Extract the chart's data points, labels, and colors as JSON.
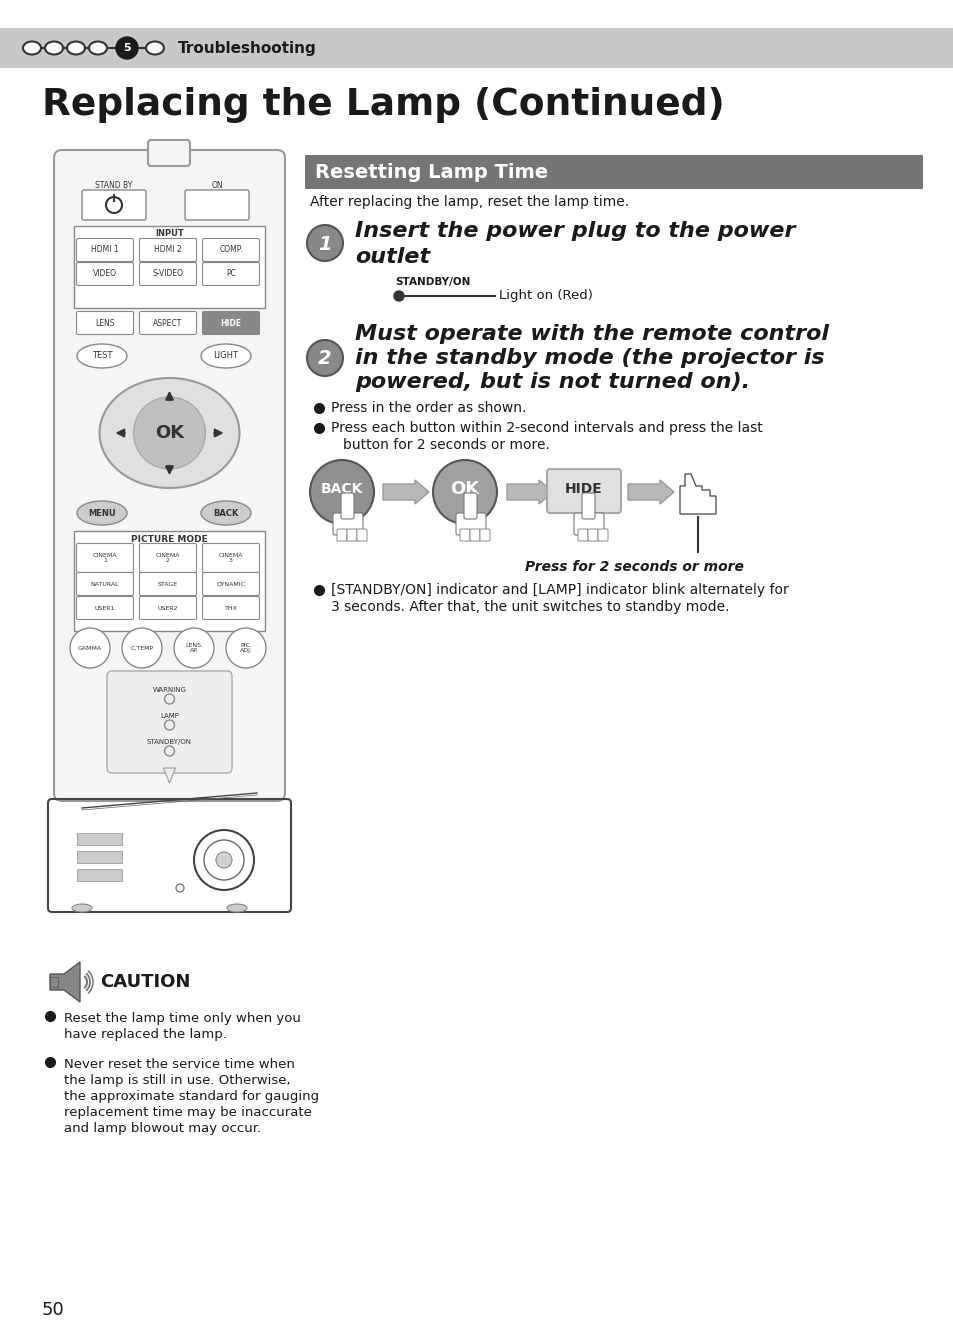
{
  "page_bg": "#ffffff",
  "header_bg": "#c8c8c8",
  "header_text": "Troubleshooting",
  "title": "Replacing the Lamp (Continued)",
  "section_header_bg": "#757575",
  "section_header_text": "Resetting Lamp Time",
  "section_header_text_color": "#ffffff",
  "intro_text": "After replacing the lamp, reset the lamp time.",
  "step1_text_line1": "Insert the power plug to the power",
  "step1_text_line2": "outlet",
  "standby_label": "STANDBY/ON",
  "standby_note": "Light on (Red)",
  "step2_text_line1": "Must operate with the remote control",
  "step2_text_line2": "in the standby mode (the projector is",
  "step2_text_line3": "powered, but is not turned on).",
  "bullet1": "Press in the order as shown.",
  "bullet2_line1": "Press each button within 2-second intervals and press the last",
  "bullet2_line2": "button for 2 seconds or more.",
  "press_note": "Press for 2 seconds or more",
  "bullet3_line1": "[STANDBY/ON] indicator and [LAMP] indicator blink alternately for",
  "bullet3_line2": "3 seconds. After that, the unit switches to standby mode.",
  "caution_title": "CAUTION",
  "caution_bullets": [
    [
      "Reset the lamp time only when you",
      "have replaced the lamp."
    ],
    [
      "Never reset the service time when",
      "the lamp is still in use. Otherwise,",
      "the approximate standard for gauging",
      "replacement time may be inaccurate",
      "and lamp blowout may occur."
    ]
  ],
  "page_number": "50",
  "step_circle_color": "#888888",
  "arrow_color": "#aaaaaa",
  "back_color": "#909090",
  "ok_color": "#a0a0a0",
  "hide_bg": "#e0e0e0",
  "hide_border": "#aaaaaa",
  "remote_bg": "#f5f5f5",
  "remote_border": "#aaaaaa"
}
